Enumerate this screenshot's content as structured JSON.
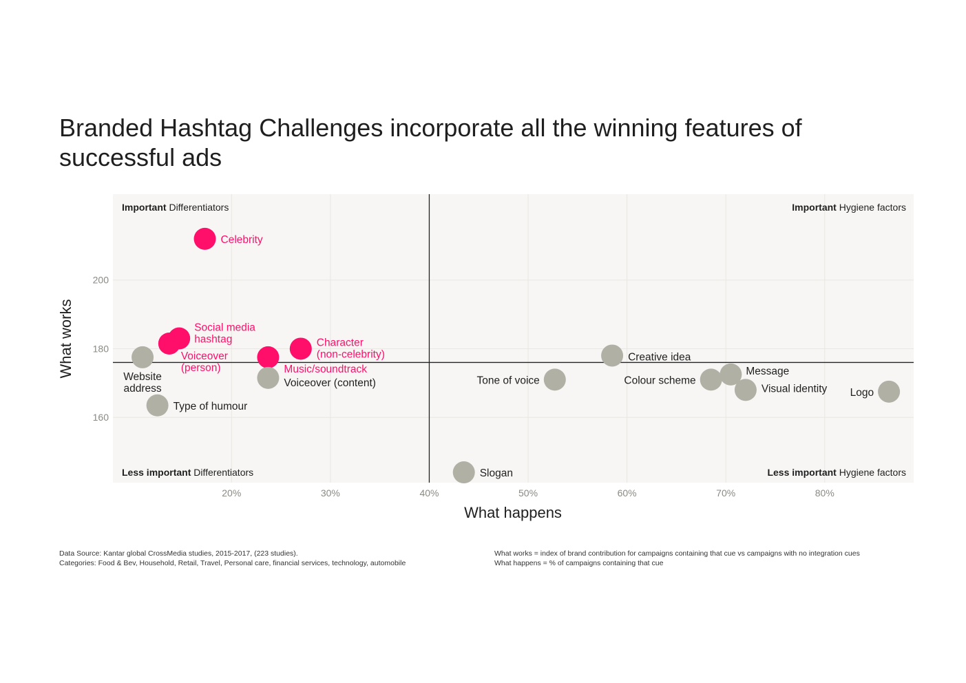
{
  "title": "Branded Hashtag Challenges incorporate all the winning features of successful ads",
  "colors": {
    "highlight": "#ff0f6a",
    "neutral": "#b1b0a4",
    "plot_bg": "#f7f6f4",
    "divider": "#222222"
  },
  "footnotes": {
    "source": "Data Source: Kantar global CrossMedia studies, 2015-2017, (223 studies).",
    "categories": "Categories: Food & Bev, Household, Retail, Travel, Personal care, financial services, technology, automobile",
    "what_works_def": "What works = index of brand contribution for campaigns containing that cue vs campaigns with no integration cues",
    "what_happens_def": "What happens = % of campaigns containing that cue"
  },
  "chart_data": {
    "type": "scatter",
    "title": "Branded Hashtag Challenges incorporate all the winning features of successful ads",
    "xlabel": "What happens",
    "ylabel": "What works",
    "x_ticks": [
      "20%",
      "30%",
      "40%",
      "50%",
      "60%",
      "70%",
      "80%"
    ],
    "x_tick_values": [
      20,
      30,
      40,
      50,
      60,
      70,
      80
    ],
    "y_ticks": [
      "160",
      "180",
      "200"
    ],
    "y_tick_values": [
      160,
      180,
      200
    ],
    "xlim": [
      8,
      89
    ],
    "ylim": [
      141,
      225
    ],
    "divider": {
      "x": 40,
      "y": 176
    },
    "grid": true,
    "quadrants": [
      {
        "bold": "Important",
        "text": " Differentiators",
        "position": "top-left"
      },
      {
        "bold": "Important",
        "text": " Hygiene factors",
        "position": "top-right"
      },
      {
        "bold": "Less important",
        "text": " Differentiators",
        "position": "bottom-left"
      },
      {
        "bold": "Less important",
        "text": " Hygiene factors",
        "position": "bottom-right"
      }
    ],
    "points": [
      {
        "label": "Celebrity",
        "x": 17.3,
        "y": 212,
        "highlight": true
      },
      {
        "label": "Social media\nhashtag",
        "x": 14.7,
        "y": 183,
        "highlight": true
      },
      {
        "label": "Voiceover\n(person)",
        "x": 13.7,
        "y": 181.5,
        "highlight": true
      },
      {
        "label": "Music/soundtrack",
        "x": 23.7,
        "y": 177.5,
        "highlight": true
      },
      {
        "label": "Character\n(non-celebrity)",
        "x": 27,
        "y": 180,
        "highlight": true
      },
      {
        "label": "Website\naddress",
        "x": 11,
        "y": 177.5,
        "highlight": false
      },
      {
        "label": "Voiceover (content)",
        "x": 23.7,
        "y": 171.5,
        "highlight": false
      },
      {
        "label": "Type of humour",
        "x": 12.5,
        "y": 163.5,
        "highlight": false
      },
      {
        "label": "Tone of voice",
        "x": 52.7,
        "y": 171,
        "highlight": false
      },
      {
        "label": "Creative idea",
        "x": 58.5,
        "y": 178,
        "highlight": false
      },
      {
        "label": "Colour scheme",
        "x": 68.5,
        "y": 171,
        "highlight": false
      },
      {
        "label": "Message",
        "x": 70.5,
        "y": 172.5,
        "highlight": false
      },
      {
        "label": "Visual identity",
        "x": 72,
        "y": 168,
        "highlight": false
      },
      {
        "label": "Logo",
        "x": 86.5,
        "y": 167.5,
        "highlight": false
      },
      {
        "label": "Slogan",
        "x": 43.5,
        "y": 144,
        "highlight": false
      }
    ]
  }
}
